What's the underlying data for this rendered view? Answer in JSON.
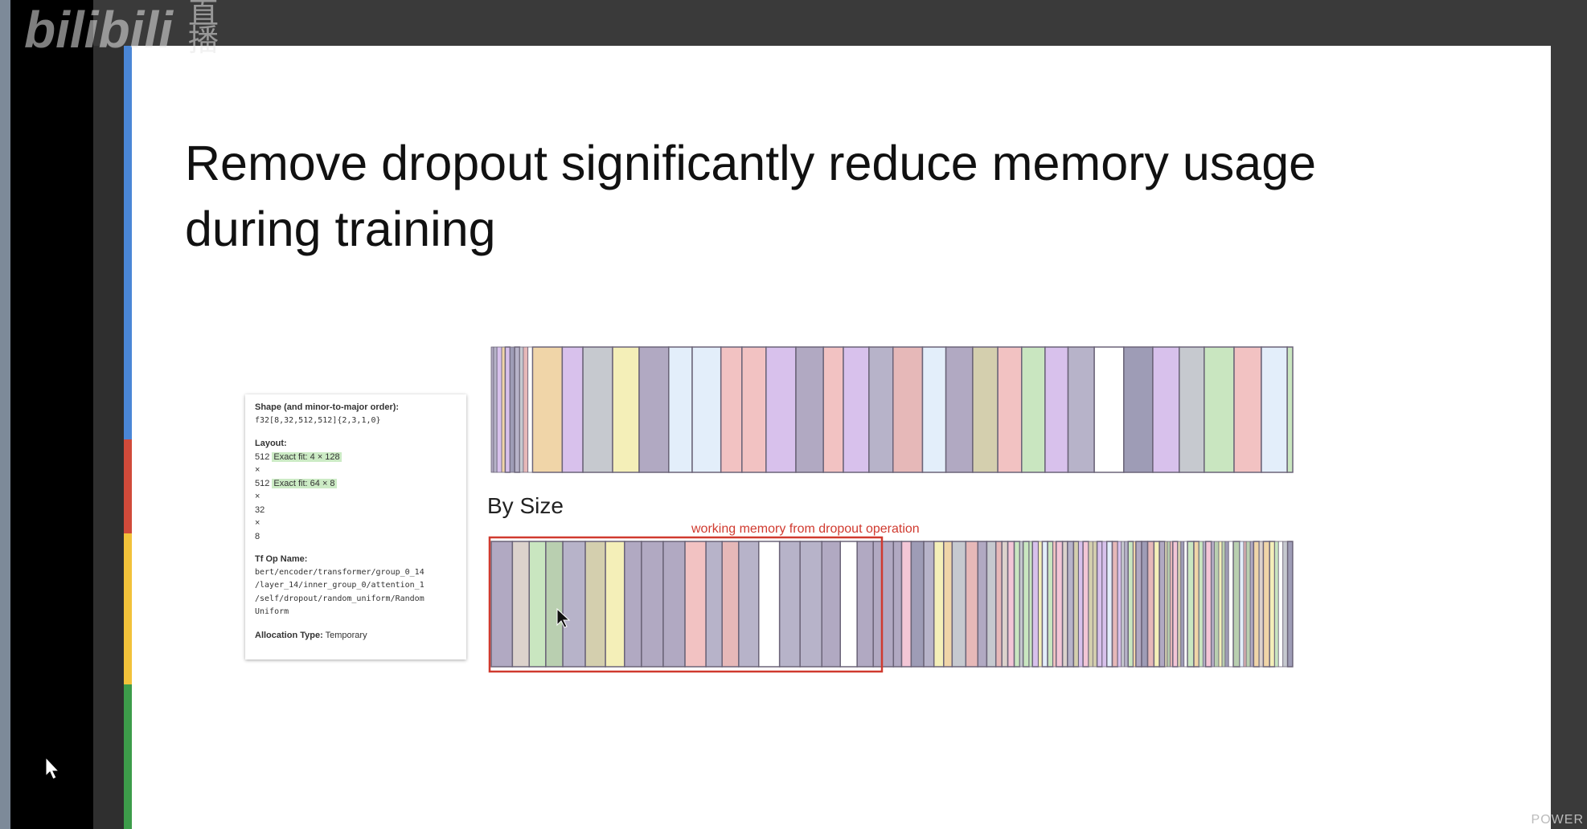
{
  "watermark": {
    "logo": "bilibili",
    "badge": "直播"
  },
  "slide": {
    "title_lines": [
      "Remove dropout significantly reduce memory usage",
      "during training"
    ],
    "by_size_label": "By Size",
    "annotation": "working memory from dropout operation"
  },
  "tooltip": {
    "shape_label": "Shape (and minor-to-major order):",
    "shape_value": "f32[8,32,512,512]{2,3,1,0}",
    "layout_label": "Layout:",
    "layout_lines": [
      [
        "512",
        "Exact fit: 4 × 128"
      ],
      [
        "×"
      ],
      [
        "512",
        "Exact fit: 64 × 8"
      ],
      [
        "×"
      ],
      [
        "32"
      ],
      [
        "×"
      ],
      [
        "8"
      ]
    ],
    "op_label": "Tf Op Name:",
    "op_lines": [
      "bert/encoder/transformer/group_0_14",
      "/layer_14/inner_group_0/attention_1",
      "/self/dropout/random_uniform/Random",
      "Uniform"
    ],
    "alloc_label": "Allocation Type:",
    "alloc_value": "Temporary"
  },
  "footer": "POWER"
}
